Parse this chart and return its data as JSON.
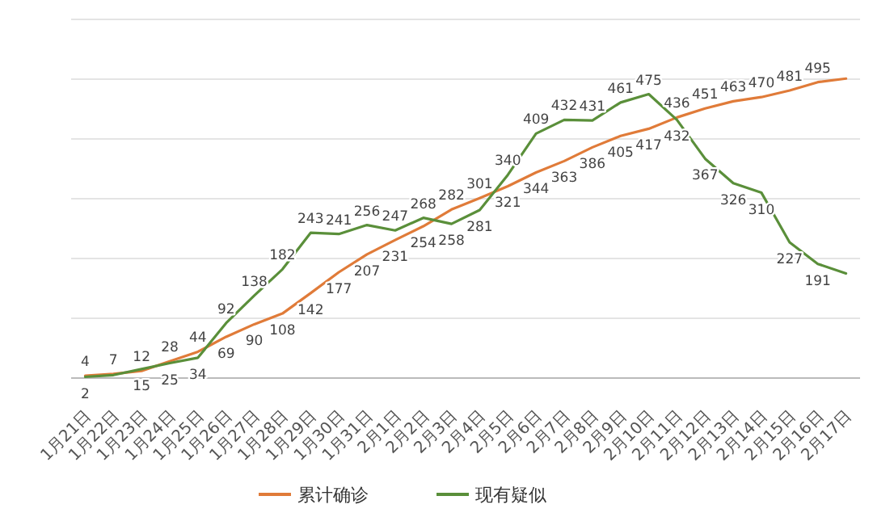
{
  "chart_data": {
    "type": "line",
    "categories": [
      "1月21日",
      "1月22日",
      "1月23日",
      "1月24日",
      "1月25日",
      "1月26日",
      "1月27日",
      "1月28日",
      "1月29日",
      "1月30日",
      "1月31日",
      "2月1日",
      "2月2日",
      "2月3日",
      "2月4日",
      "2月5日",
      "2月6日",
      "2月7日",
      "2月8日",
      "2月9日",
      "2月10日",
      "2月11日",
      "2月12日",
      "2月13日",
      "2月14日",
      "2月15日",
      "2月16日",
      "2月17日"
    ],
    "series": [
      {
        "name": "累计确诊",
        "color": "#e07b39",
        "values": [
          4,
          7,
          12,
          28,
          44,
          69,
          90,
          108,
          142,
          177,
          207,
          231,
          254,
          282,
          301,
          321,
          344,
          363,
          386,
          405,
          417,
          436,
          451,
          463,
          470,
          481,
          495,
          501
        ],
        "value_labels": [
          "4",
          "7",
          "12",
          "28",
          "44",
          "69",
          "90",
          "108",
          "142",
          "177",
          "207",
          "231",
          "254",
          "282",
          "301",
          "321",
          "344",
          "363",
          "386",
          "405",
          "417",
          "436",
          "451",
          "463",
          "470",
          "481",
          "495",
          null
        ]
      },
      {
        "name": "现有疑似",
        "color": "#5a8f3a",
        "values": [
          2,
          5,
          15,
          25,
          34,
          92,
          138,
          182,
          243,
          241,
          256,
          247,
          268,
          258,
          281,
          340,
          409,
          432,
          431,
          461,
          475,
          432,
          367,
          326,
          310,
          227,
          191,
          175
        ],
        "value_labels": [
          "2",
          null,
          "15",
          "25",
          "34",
          "92",
          "138",
          "182",
          "243",
          "241",
          "256",
          "247",
          "268",
          "258",
          "281",
          "340",
          "409",
          "432",
          "431",
          "461",
          "475",
          "432",
          "367",
          "326",
          "310",
          "227",
          "191",
          null
        ]
      }
    ],
    "ylim": [
      0,
      600
    ],
    "yticks": [
      {
        "value": 0,
        "label": null
      },
      {
        "value": 100,
        "label": null
      },
      {
        "value": 200,
        "label": null
      },
      {
        "value": 300,
        "label": null
      },
      {
        "value": 400,
        "label": null
      },
      {
        "value": 500,
        "label": null
      },
      {
        "value": 600,
        "label": null
      }
    ],
    "tick_labels": "x",
    "grid": "y",
    "legend": "bottom",
    "marker": "none",
    "line_style": "solid"
  }
}
